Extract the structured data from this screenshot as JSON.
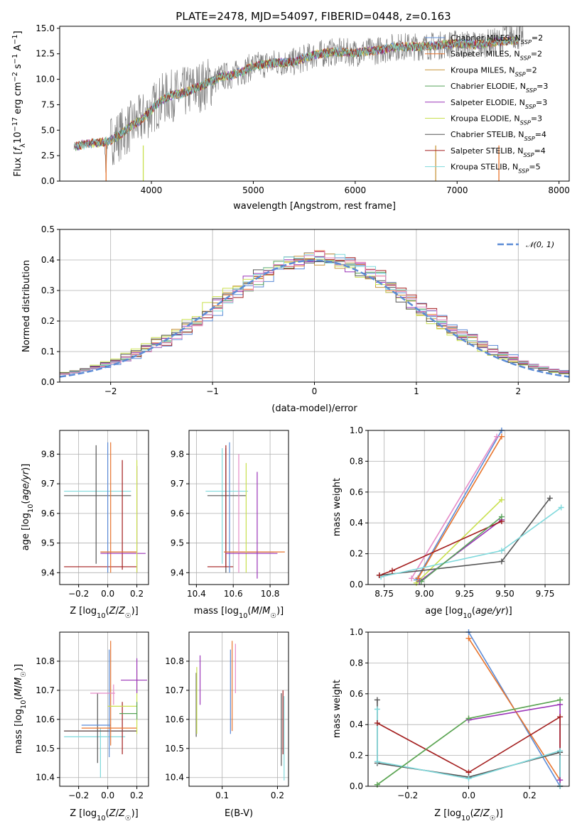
{
  "figure": {
    "title": "PLATE=2478, MJD=54097, FIBERID=0448, z=0.163"
  },
  "colors": {
    "Chabrier MILES": "#5b8bd6",
    "Salpeter MILES": "#e8742c",
    "Kroupa MILES": "#c8963c",
    "Chabrier ELODIE": "#58a35a",
    "Salpeter ELODIE": "#9b35b8",
    "Kroupa ELODIE": "#c9e04e",
    "Chabrier STELIB": "#555555",
    "Salpeter STELIB": "#a31d1d",
    "Kroupa STELIB": "#7fd9dc",
    "pink": "#e58ac6",
    "spectrum": "#808080",
    "normal": "#5b8bd6"
  },
  "chart_data": [
    {
      "id": "spectrum",
      "type": "line",
      "title": "PLATE=2478, MJD=54097, FIBERID=0448, z=0.163",
      "xlabel": "wavelength [Angstrom, rest frame]",
      "ylabel": "Flux [f_λ 10^-17 erg cm^-2 s^-1 A^-1]",
      "xlim": [
        3100,
        8100
      ],
      "ylim": [
        0,
        15.2
      ],
      "xticks": [
        4000,
        5000,
        6000,
        7000,
        8000
      ],
      "yticks": [
        0.0,
        2.5,
        5.0,
        7.5,
        10.0,
        12.5,
        15.0
      ],
      "continuum": {
        "x": [
          3250,
          3400,
          3500,
          3600,
          3700,
          3800,
          3900,
          4000,
          4100,
          4200,
          4300,
          4400,
          4500,
          4600,
          4700,
          4800,
          4900,
          5000,
          5200,
          5400,
          5600,
          5800,
          6000,
          6200,
          6400,
          6600,
          6800,
          7000,
          7200,
          7400,
          7500
        ],
        "y": [
          3.4,
          3.7,
          3.8,
          4.0,
          4.6,
          5.4,
          6.0,
          7.0,
          8.0,
          8.4,
          8.6,
          9.0,
          9.4,
          9.8,
          10.3,
          10.4,
          10.8,
          11.3,
          11.6,
          11.7,
          12.4,
          12.7,
          12.6,
          12.8,
          13.2,
          13.2,
          13.3,
          13.5,
          13.4,
          13.7,
          13.8
        ]
      },
      "legend": [
        "Chabrier MILES, N_SSP=2",
        "Salpeter MILES, N_SSP=2",
        "Kroupa MILES, N_SSP=2",
        "Chabrier ELODIE, N_SSP=3",
        "Salpeter ELODIE, N_SSP=3",
        "Kroupa ELODIE, N_SSP=3",
        "Chabrier STELIB, N_SSP=4",
        "Salpeter STELIB, N_SSP=4",
        "Kroupa STELIB, N_SSP=5"
      ],
      "legend_placement": "upper right",
      "grid": false
    },
    {
      "id": "residuals",
      "type": "area",
      "xlabel": "(data-model)/error",
      "ylabel": "Normed distribution",
      "xlim": [
        -2.5,
        2.5
      ],
      "ylim": [
        0,
        0.5
      ],
      "xticks": [
        -2,
        -1,
        0,
        1,
        2
      ],
      "yticks": [
        0.0,
        0.1,
        0.2,
        0.3,
        0.4,
        0.5
      ],
      "legend": [
        "𝒩(0, 1)"
      ],
      "legend_placement": "upper right",
      "grid": true
    },
    {
      "id": "age_vs_Z",
      "type": "scatter",
      "xlabel": "Z [log10(Z/Z☉)]",
      "ylabel": "age  [log10(age/yr)]",
      "xlim": [
        -0.33,
        0.28
      ],
      "ylim": [
        9.36,
        9.88
      ],
      "xticks": [
        -0.2,
        0.0,
        0.2
      ],
      "yticks": [
        9.4,
        9.5,
        9.6,
        9.7,
        9.8
      ],
      "grid": true,
      "points": [
        {
          "key": "Kroupa STELIB",
          "x": -0.3,
          "xmin": -0.3,
          "xmax": 0.16,
          "y": 9.675,
          "ymin": 9.675,
          "ymax": 9.675
        },
        {
          "key": "Chabrier STELIB",
          "x": -0.08,
          "xmin": -0.3,
          "xmax": 0.16,
          "y": 9.66,
          "ymin": 9.43,
          "ymax": 9.83
        },
        {
          "key": "Salpeter STELIB",
          "x": 0.1,
          "xmin": -0.3,
          "xmax": 0.2,
          "y": 9.42,
          "ymin": 9.41,
          "ymax": 9.78
        },
        {
          "key": "Chabrier MILES",
          "x": 0.0,
          "xmin": -0.05,
          "xmax": 0.2,
          "y": 9.47,
          "ymin": 9.4,
          "ymax": 9.84
        },
        {
          "key": "Salpeter MILES",
          "x": 0.02,
          "xmin": -0.05,
          "xmax": 0.2,
          "y": 9.47,
          "ymin": 9.4,
          "ymax": 9.84
        },
        {
          "key": "Salpeter ELODIE",
          "x": 0.2,
          "xmin": -0.05,
          "xmax": 0.26,
          "y": 9.465,
          "ymin": 9.4,
          "ymax": 9.76
        },
        {
          "key": "Kroupa ELODIE",
          "x": 0.2,
          "xmin": 0.2,
          "xmax": 0.2,
          "y": 9.74,
          "ymin": 9.4,
          "ymax": 9.78
        }
      ]
    },
    {
      "id": "age_vs_mass",
      "type": "scatter",
      "xlabel": "mass [log10(M/M☉)]",
      "ylabel": "",
      "xlim": [
        10.36,
        10.9
      ],
      "ylim": [
        9.36,
        9.88
      ],
      "xticks": [
        10.4,
        10.6,
        10.8
      ],
      "yticks": [
        9.4,
        9.5,
        9.6,
        9.7,
        9.8
      ],
      "grid": true,
      "points": [
        {
          "key": "Kroupa STELIB",
          "x": 10.54,
          "xmin": 10.45,
          "xmax": 10.68,
          "y": 9.675,
          "ymin": 9.43,
          "ymax": 9.82
        },
        {
          "key": "Chabrier STELIB",
          "x": 10.56,
          "xmin": 10.46,
          "xmax": 10.67,
          "y": 9.66,
          "ymin": 9.4,
          "ymax": 9.82
        },
        {
          "key": "Salpeter STELIB",
          "x": 10.56,
          "xmin": 10.46,
          "xmax": 10.6,
          "y": 9.42,
          "ymin": 9.42,
          "ymax": 9.83
        },
        {
          "key": "Chabrier MILES",
          "x": 10.58,
          "xmin": 10.55,
          "xmax": 10.82,
          "y": 9.47,
          "ymin": 9.4,
          "ymax": 9.84
        },
        {
          "key": "Salpeter MILES",
          "x": 10.85,
          "xmin": 10.55,
          "xmax": 10.88,
          "y": 9.47,
          "ymin": 9.47,
          "ymax": 9.47
        },
        {
          "key": "pink",
          "x": 10.63,
          "xmin": 10.63,
          "xmax": 10.63,
          "y": 9.5,
          "ymin": 9.4,
          "ymax": 9.8
        },
        {
          "key": "Kroupa ELODIE",
          "x": 10.67,
          "xmin": 10.67,
          "xmax": 10.67,
          "y": 9.6,
          "ymin": 9.4,
          "ymax": 9.77
        },
        {
          "key": "Salpeter ELODIE",
          "x": 10.73,
          "xmin": 10.56,
          "xmax": 10.84,
          "y": 9.465,
          "ymin": 9.38,
          "ymax": 9.74
        }
      ]
    },
    {
      "id": "massweight_vs_age",
      "type": "line",
      "xlabel": "age  [log10(age/yr)]",
      "ylabel": "mass weight",
      "xlim": [
        8.65,
        9.9
      ],
      "ylim": [
        0,
        1.0
      ],
      "xticks": [
        8.75,
        9.0,
        9.25,
        9.5,
        9.75
      ],
      "yticks": [
        0.0,
        0.2,
        0.4,
        0.6,
        0.8,
        1.0
      ],
      "grid": true,
      "series": [
        {
          "key": "Chabrier MILES",
          "x": [
            8.95,
            9.48
          ],
          "y": [
            0.03,
            1.0
          ]
        },
        {
          "key": "Salpeter MILES",
          "x": [
            8.96,
            9.48
          ],
          "y": [
            0.04,
            0.96
          ]
        },
        {
          "key": "pink",
          "x": [
            8.92,
            9.45
          ],
          "y": [
            0.04,
            0.96
          ]
        },
        {
          "key": "Kroupa ELODIE",
          "x": [
            8.95,
            9.48
          ],
          "y": [
            0.01,
            0.55
          ]
        },
        {
          "key": "Salpeter ELODIE",
          "x": [
            8.97,
            9.48
          ],
          "y": [
            0.02,
            0.42
          ]
        },
        {
          "key": "Chabrier STELIB",
          "x": [
            8.72,
            9.48,
            9.78
          ],
          "y": [
            0.06,
            0.15,
            0.56
          ]
        },
        {
          "key": "Kroupa STELIB",
          "x": [
            8.73,
            9.48,
            9.85
          ],
          "y": [
            0.05,
            0.22,
            0.5
          ]
        },
        {
          "key": "Salpeter STELIB",
          "x": [
            8.72,
            8.8,
            9.48
          ],
          "y": [
            0.06,
            0.09,
            0.41
          ]
        },
        {
          "key": "Chabrier ELODIE",
          "x": [
            8.98,
            9.48
          ],
          "y": [
            0.02,
            0.44
          ]
        }
      ]
    },
    {
      "id": "mass_vs_Z",
      "type": "scatter",
      "xlabel": "Z [log10(Z/Z☉)]",
      "ylabel": "mass [log10(M/M☉)]",
      "xlim": [
        -0.33,
        0.28
      ],
      "ylim": [
        10.37,
        10.9
      ],
      "xticks": [
        -0.2,
        0.0,
        0.2
      ],
      "yticks": [
        10.4,
        10.5,
        10.6,
        10.7,
        10.8
      ],
      "grid": true,
      "points": [
        {
          "key": "Kroupa STELIB",
          "x": -0.05,
          "xmin": -0.3,
          "xmax": 0.12,
          "y": 10.54,
          "ymin": 10.4,
          "ymax": 10.57
        },
        {
          "key": "Salpeter STELIB",
          "x": 0.1,
          "xmin": -0.3,
          "xmax": 0.2,
          "y": 10.56,
          "ymin": 10.48,
          "ymax": 10.66
        },
        {
          "key": "Chabrier STELIB",
          "x": -0.07,
          "xmin": -0.3,
          "xmax": 0.2,
          "y": 10.56,
          "ymin": 10.45,
          "ymax": 10.69
        },
        {
          "key": "Chabrier MILES",
          "x": 0.01,
          "xmin": -0.18,
          "xmax": 0.02,
          "y": 10.58,
          "ymin": 10.47,
          "ymax": 10.84
        },
        {
          "key": "Salpeter MILES",
          "x": 0.02,
          "xmin": -0.18,
          "xmax": 0.2,
          "y": 10.57,
          "ymin": 10.51,
          "ymax": 10.87
        },
        {
          "key": "pink",
          "x": 0.04,
          "xmin": -0.12,
          "xmax": 0.05,
          "y": 10.69,
          "ymin": 10.65,
          "ymax": 10.72
        },
        {
          "key": "Kroupa ELODIE",
          "x": 0.2,
          "xmin": 0.0,
          "xmax": 0.2,
          "y": 10.645,
          "ymin": 10.55,
          "ymax": 10.77
        },
        {
          "key": "Salpeter ELODIE",
          "x": 0.2,
          "xmin": 0.09,
          "xmax": 0.27,
          "y": 10.735,
          "ymin": 10.69,
          "ymax": 10.81
        },
        {
          "key": "Chabrier ELODIE",
          "x": 0.2,
          "xmin": 0.08,
          "xmax": 0.2,
          "y": 10.62,
          "ymin": 10.6,
          "ymax": 10.66
        }
      ]
    },
    {
      "id": "mass_vs_ebv",
      "type": "scatter",
      "xlabel": "E(B-V)",
      "ylabel": "",
      "xlim": [
        0.04,
        0.22
      ],
      "ylim": [
        10.37,
        10.9
      ],
      "xticks": [
        0.1,
        0.2
      ],
      "yticks": [
        10.4,
        10.5,
        10.6,
        10.7,
        10.8
      ],
      "grid": true,
      "points": [
        {
          "key": "Chabrier STELIB",
          "x": 0.053,
          "ymin": 10.54,
          "ymax": 10.76
        },
        {
          "key": "Kroupa ELODIE",
          "x": 0.054,
          "ymin": 10.55,
          "ymax": 10.78
        },
        {
          "key": "Salpeter ELODIE",
          "x": 0.06,
          "ymin": 10.65,
          "ymax": 10.82
        },
        {
          "key": "Chabrier MILES",
          "x": 0.115,
          "ymin": 10.55,
          "ymax": 10.84
        },
        {
          "key": "Salpeter MILES",
          "x": 0.118,
          "ymin": 10.56,
          "ymax": 10.87
        },
        {
          "key": "pink",
          "x": 0.124,
          "ymin": 10.69,
          "ymax": 10.86
        },
        {
          "key": "Chabrier STELIB",
          "x": 0.207,
          "ymin": 10.44,
          "ymax": 10.69
        },
        {
          "key": "Salpeter STELIB",
          "x": 0.21,
          "ymin": 10.48,
          "ymax": 10.7
        },
        {
          "key": "Kroupa STELIB",
          "x": 0.212,
          "ymin": 10.39,
          "ymax": 10.68
        }
      ]
    },
    {
      "id": "massweight_vs_Z",
      "type": "line",
      "xlabel": "Z [log10(Z/Z☉)]",
      "ylabel": "mass weight",
      "xlim": [
        -0.33,
        0.33
      ],
      "ylim": [
        0,
        1.0
      ],
      "xticks": [
        -0.2,
        0.0,
        0.2
      ],
      "yticks": [
        0.0,
        0.2,
        0.4,
        0.6,
        0.8,
        1.0
      ],
      "grid": true,
      "series": [
        {
          "key": "Chabrier MILES",
          "x": [
            0.0,
            0.3
          ],
          "y": [
            1.0,
            0.0
          ]
        },
        {
          "key": "Salpeter MILES",
          "x": [
            0.0,
            0.3
          ],
          "y": [
            0.96,
            0.04
          ]
        },
        {
          "key": "Kroupa ELODIE",
          "x": [
            -0.3,
            0.0,
            0.3
          ],
          "y": [
            0.01,
            0.44,
            0.56
          ]
        },
        {
          "key": "Salpeter ELODIE",
          "x": [
            0.0,
            0.3,
            0.3
          ],
          "y": [
            0.43,
            0.53,
            0.04
          ]
        },
        {
          "key": "Salpeter STELIB",
          "x": [
            -0.3,
            0.0,
            0.3,
            0.3
          ],
          "y": [
            0.41,
            0.09,
            0.45,
            0.0
          ]
        },
        {
          "key": "Chabrier STELIB",
          "x": [
            -0.3,
            -0.3,
            0.0,
            0.3,
            0.3
          ],
          "y": [
            0.56,
            0.15,
            0.06,
            0.22,
            0.0
          ]
        },
        {
          "key": "Kroupa STELIB",
          "x": [
            -0.3,
            -0.3,
            0.0,
            0.3,
            0.3
          ],
          "y": [
            0.5,
            0.16,
            0.05,
            0.23,
            0.0
          ]
        },
        {
          "key": "Chabrier ELODIE",
          "x": [
            -0.3,
            0.0,
            0.3
          ],
          "y": [
            0.01,
            0.44,
            0.56
          ]
        }
      ]
    }
  ]
}
